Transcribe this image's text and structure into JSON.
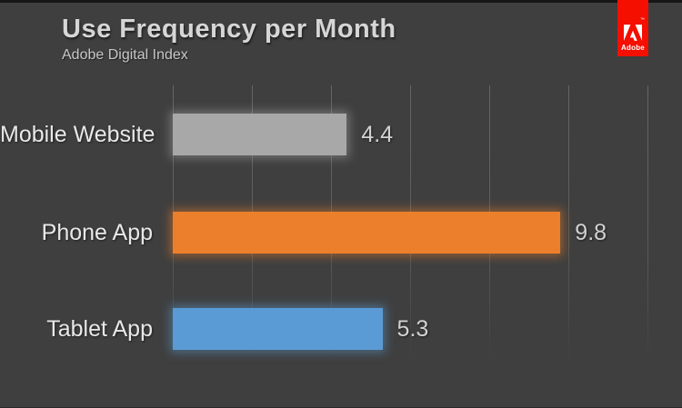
{
  "header": {
    "title": "Use Frequency per Month",
    "subtitle": "Adobe Digital Index"
  },
  "brand": {
    "name": "Adobe",
    "wordmark": "Adobe",
    "trademark": "™",
    "tab_color": "#f40f00",
    "logo_color": "#ffffff"
  },
  "chart_data": {
    "type": "bar",
    "orientation": "horizontal",
    "title": "Use Frequency per Month",
    "subtitle": "Adobe Digital Index",
    "categories": [
      "Mobile Website",
      "Phone App",
      "Tablet App"
    ],
    "values": [
      4.4,
      9.8,
      5.3
    ],
    "value_labels": [
      "4.4",
      "9.8",
      "5.3"
    ],
    "bar_colors": [
      "#a8a8a8",
      "#ec7f2b",
      "#5b9bd5"
    ],
    "xlim": [
      0,
      12
    ],
    "gridline_interval": 2,
    "grid": true,
    "legend": false,
    "background_color": "#3f3f3f",
    "xlabel": "",
    "ylabel": ""
  }
}
